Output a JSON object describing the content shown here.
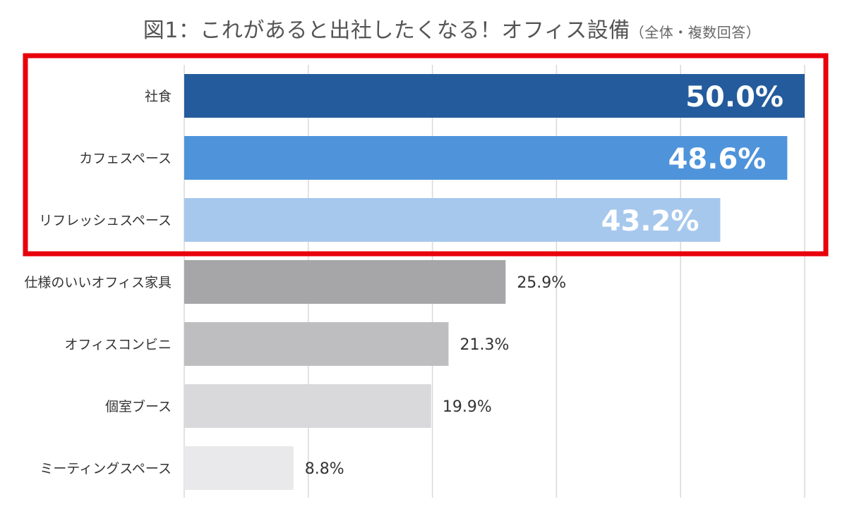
{
  "chart_data": {
    "type": "bar",
    "orientation": "horizontal",
    "title": "図1：これがあると出社したくなる！オフィス設備",
    "subtitle": "（全体・複数回答）",
    "categories": [
      "社食",
      "カフェスペース",
      "リフレッシュスペース",
      "仕様のいいオフィス家具",
      "オフィスコンビニ",
      "個室ブース",
      "ミーティングスペース"
    ],
    "values": [
      50.0,
      48.6,
      43.2,
      25.9,
      21.3,
      19.9,
      8.8
    ],
    "data_labels": [
      "50.0%",
      "48.6%",
      "43.2%",
      "25.9%",
      "21.3%",
      "19.9%",
      "8.8%"
    ],
    "bar_colors": [
      "#245b9c",
      "#4f94db",
      "#a7c8ed",
      "#a6a5a8",
      "#bebdc0",
      "#d9d8db",
      "#e9e8eb"
    ],
    "label_styles": [
      "inside",
      "inside",
      "inside",
      "outside",
      "outside",
      "outside",
      "outside"
    ],
    "xlim": [
      0,
      50
    ],
    "grid": true,
    "legend": "none",
    "highlight": {
      "categories": [
        "社食",
        "カフェスペース",
        "リフレッシュスペース"
      ],
      "color": "#e8000b"
    }
  }
}
